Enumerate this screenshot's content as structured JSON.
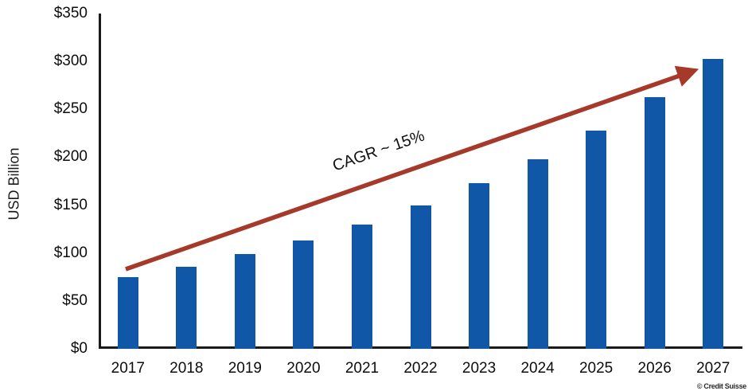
{
  "chart_data": {
    "type": "bar",
    "title": "",
    "xlabel": "",
    "ylabel": "USD Billion",
    "categories": [
      "2017",
      "2018",
      "2019",
      "2020",
      "2021",
      "2022",
      "2023",
      "2024",
      "2025",
      "2026",
      "2027"
    ],
    "values": [
      75,
      86,
      99,
      113,
      130,
      150,
      173,
      198,
      228,
      263,
      303
    ],
    "ylim": [
      0,
      350
    ],
    "ytick_values": [
      0,
      50,
      100,
      150,
      200,
      250,
      300,
      350
    ],
    "ytick_labels": [
      "$0",
      "$50",
      "$100",
      "$150",
      "$200",
      "$250",
      "$300",
      "$350"
    ],
    "grid": false,
    "legend": "none",
    "bar_color": "#1057A8",
    "axis_color": "#1a1a1a",
    "annotation": {
      "text": "CAGR ~ 15%",
      "type": "trend-arrow",
      "arrow_color": "#A53A2B"
    }
  },
  "watermark": "© Credit Suisse"
}
